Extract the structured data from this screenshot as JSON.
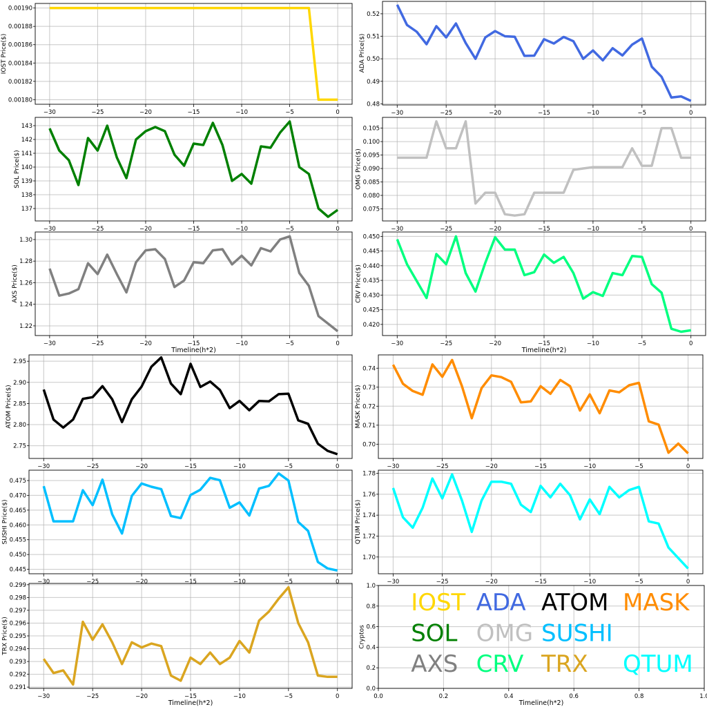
{
  "chart_data": [
    {
      "id": "iost",
      "type": "line",
      "name": "IOST",
      "color": "#FFD700",
      "ylabel": "IOST Price($)",
      "xlabel": "",
      "xlim": [
        -31.5,
        1.5
      ],
      "ylim": [
        0.001795,
        0.001905
      ],
      "xticks": [
        -30,
        -25,
        -20,
        -15,
        -10,
        -5,
        0
      ],
      "xtick_labels": [
        "−30",
        "−25",
        "−20",
        "−15",
        "−10",
        "−5",
        "0"
      ],
      "yticks": [
        0.0018,
        0.00182,
        0.00184,
        0.00186,
        0.00188,
        0.0019
      ],
      "ytick_labels": [
        "0.00180",
        "0.00182",
        "0.00184",
        "0.00186",
        "0.00188",
        "0.00190"
      ],
      "x": [
        -30,
        -29,
        -28,
        -27,
        -26,
        -25,
        -24,
        -23,
        -22,
        -21,
        -20,
        -19,
        -18,
        -17,
        -16,
        -15,
        -14,
        -13,
        -12,
        -11,
        -10,
        -9,
        -8,
        -7,
        -6,
        -5,
        -4,
        -3,
        -2,
        -1,
        0
      ],
      "y": [
        0.0019,
        0.0019,
        0.0019,
        0.0019,
        0.0019,
        0.0019,
        0.0019,
        0.0019,
        0.0019,
        0.0019,
        0.0019,
        0.0019,
        0.0019,
        0.0019,
        0.0019,
        0.0019,
        0.0019,
        0.0019,
        0.0019,
        0.0019,
        0.0019,
        0.0019,
        0.0019,
        0.0019,
        0.0019,
        0.0019,
        0.0019,
        0.0019,
        0.0018,
        0.0018,
        0.0018
      ]
    },
    {
      "id": "ada",
      "type": "line",
      "name": "ADA",
      "color": "#4169E1",
      "ylabel": "ADA  Price($)",
      "xlabel": "",
      "xlim": [
        -31.5,
        1.5
      ],
      "ylim": [
        0.4795,
        0.5255
      ],
      "xticks": [
        -30,
        -25,
        -20,
        -15,
        -10,
        -5,
        0
      ],
      "xtick_labels": [
        "−30",
        "−25",
        "−20",
        "−15",
        "−10",
        "−5",
        "0"
      ],
      "yticks": [
        0.48,
        0.49,
        0.5,
        0.51,
        0.52
      ],
      "ytick_labels": [
        "0.48",
        "0.49",
        "0.50",
        "0.51",
        "0.52"
      ],
      "x": [
        -30,
        -29,
        -28,
        -27,
        -26,
        -25,
        -24,
        -23,
        -22,
        -21,
        -20,
        -19,
        -18,
        -17,
        -16,
        -15,
        -14,
        -13,
        -12,
        -11,
        -10,
        -9,
        -8,
        -7,
        -6,
        -5,
        -4,
        -3,
        -2,
        -1,
        0
      ],
      "y": [
        0.524,
        0.515,
        0.512,
        0.5065,
        0.5145,
        0.5095,
        0.5157,
        0.507,
        0.5,
        0.5095,
        0.5123,
        0.51,
        0.5098,
        0.5013,
        0.5014,
        0.5087,
        0.5068,
        0.5097,
        0.5078,
        0.5,
        0.5037,
        0.4993,
        0.5047,
        0.5015,
        0.5063,
        0.509,
        0.4965,
        0.492,
        0.4828,
        0.4833,
        0.4813
      ]
    },
    {
      "id": "sol",
      "type": "line",
      "name": "SOL",
      "color": "#008000",
      "ylabel": "SOL Price($)",
      "xlabel": "",
      "xlim": [
        -31.5,
        1.5
      ],
      "ylim": [
        136.1,
        143.6
      ],
      "xticks": [
        -30,
        -25,
        -20,
        -15,
        -10,
        -5,
        0
      ],
      "xtick_labels": [
        "−30",
        "−25",
        "−20",
        "−15",
        "−10",
        "−5",
        "0"
      ],
      "yticks": [
        137,
        138,
        139,
        140,
        141,
        142,
        143
      ],
      "ytick_labels": [
        "137",
        "138",
        "139",
        "140",
        "141",
        "142",
        "143"
      ],
      "x": [
        -30,
        -29,
        -28,
        -27,
        -26,
        -25,
        -24,
        -23,
        -22,
        -21,
        -20,
        -19,
        -18,
        -17,
        -16,
        -15,
        -14,
        -13,
        -12,
        -11,
        -10,
        -9,
        -8,
        -7,
        -6,
        -5,
        -4,
        -3,
        -2,
        -1,
        0
      ],
      "y": [
        142.8,
        141.2,
        140.5,
        138.7,
        142.1,
        141.2,
        143.0,
        140.7,
        139.2,
        142.0,
        142.6,
        142.9,
        142.6,
        140.9,
        140.1,
        141.7,
        141.6,
        143.2,
        141.6,
        139.0,
        139.5,
        138.8,
        141.5,
        141.4,
        142.5,
        143.3,
        140.0,
        139.5,
        137.0,
        136.4,
        136.9
      ]
    },
    {
      "id": "omg",
      "type": "line",
      "name": "OMG",
      "color": "#C0C0C0",
      "ylabel": "OMG  Price($)",
      "xlabel": "",
      "xlim": [
        -31.5,
        1.5
      ],
      "ylim": [
        0.0705,
        0.109
      ],
      "xticks": [
        -30,
        -25,
        -20,
        -15,
        -10,
        -5,
        0
      ],
      "xtick_labels": [
        "−30",
        "−25",
        "−20",
        "−15",
        "−10",
        "−5",
        "0"
      ],
      "yticks": [
        0.075,
        0.08,
        0.085,
        0.09,
        0.095,
        0.1,
        0.105
      ],
      "ytick_labels": [
        "0.075",
        "0.080",
        "0.085",
        "0.090",
        "0.095",
        "0.100",
        "0.105"
      ],
      "x": [
        -30,
        -29,
        -28,
        -27,
        -26,
        -25,
        -24,
        -23,
        -22,
        -21,
        -20,
        -19,
        -18,
        -17,
        -16,
        -15,
        -14,
        -13,
        -12,
        -11,
        -10,
        -9,
        -8,
        -7,
        -6,
        -5,
        -4,
        -3,
        -2,
        -1,
        0
      ],
      "y": [
        0.094,
        0.094,
        0.094,
        0.094,
        0.1075,
        0.0975,
        0.0975,
        0.1075,
        0.077,
        0.081,
        0.081,
        0.073,
        0.0725,
        0.073,
        0.081,
        0.081,
        0.081,
        0.081,
        0.0895,
        0.09,
        0.0905,
        0.0905,
        0.0905,
        0.0905,
        0.0975,
        0.091,
        0.091,
        0.105,
        0.105,
        0.094,
        0.094
      ]
    },
    {
      "id": "axs",
      "type": "line",
      "name": "AXS",
      "color": "#808080",
      "ylabel": "AXS Price($)",
      "xlabel": "Timeline(h*2)",
      "xlim": [
        -31.5,
        1.5
      ],
      "ylim": [
        1.211,
        1.307
      ],
      "xticks": [
        -30,
        -25,
        -20,
        -15,
        -10,
        -5,
        0
      ],
      "xtick_labels": [
        "−30",
        "−25",
        "−20",
        "−15",
        "−10",
        "−5",
        "0"
      ],
      "yticks": [
        1.22,
        1.24,
        1.26,
        1.28,
        1.3
      ],
      "ytick_labels": [
        "1.22",
        "1.24",
        "1.26",
        "1.28",
        "1.30"
      ],
      "x": [
        -30,
        -29,
        -28,
        -27,
        -26,
        -25,
        -24,
        -23,
        -22,
        -21,
        -20,
        -19,
        -18,
        -17,
        -16,
        -15,
        -14,
        -13,
        -12,
        -11,
        -10,
        -9,
        -8,
        -7,
        -6,
        -5,
        -4,
        -3,
        -2,
        -1,
        0
      ],
      "y": [
        1.273,
        1.248,
        1.25,
        1.254,
        1.278,
        1.268,
        1.286,
        1.268,
        1.251,
        1.279,
        1.29,
        1.291,
        1.282,
        1.256,
        1.262,
        1.279,
        1.278,
        1.29,
        1.291,
        1.277,
        1.285,
        1.276,
        1.292,
        1.289,
        1.3,
        1.303,
        1.269,
        1.257,
        1.229,
        1.222,
        1.215
      ]
    },
    {
      "id": "crv",
      "type": "line",
      "name": "CRV",
      "color": "#00FF7F",
      "ylabel": "CRV  Price($)",
      "xlabel": "Timeline(h*2)",
      "xlim": [
        -31.5,
        1.5
      ],
      "ylim": [
        0.4162,
        0.4515
      ],
      "xticks": [
        -30,
        -25,
        -20,
        -15,
        -10,
        -5,
        0
      ],
      "xtick_labels": [
        "−30",
        "−25",
        "−20",
        "−15",
        "−10",
        "−5",
        "0"
      ],
      "yticks": [
        0.42,
        0.425,
        0.43,
        0.435,
        0.44,
        0.445,
        0.45
      ],
      "ytick_labels": [
        "0.420",
        "0.425",
        "0.430",
        "0.435",
        "0.440",
        "0.445",
        "0.450"
      ],
      "x": [
        -30,
        -29,
        -28,
        -27,
        -26,
        -25,
        -24,
        -23,
        -22,
        -21,
        -20,
        -19,
        -18,
        -17,
        -16,
        -15,
        -14,
        -13,
        -12,
        -11,
        -10,
        -9,
        -8,
        -7,
        -6,
        -5,
        -4,
        -3,
        -2,
        -1,
        0
      ],
      "y": [
        0.449,
        0.4405,
        0.4348,
        0.429,
        0.444,
        0.4405,
        0.45,
        0.4375,
        0.4312,
        0.441,
        0.4497,
        0.4455,
        0.4455,
        0.4368,
        0.4378,
        0.4438,
        0.441,
        0.443,
        0.4375,
        0.4288,
        0.431,
        0.4297,
        0.4375,
        0.4368,
        0.4433,
        0.443,
        0.4337,
        0.4308,
        0.4185,
        0.4175,
        0.418
      ]
    },
    {
      "id": "atom",
      "type": "line",
      "name": "ATOM",
      "color": "#000000",
      "ylabel": "ATOM  Price($)",
      "xlabel": "",
      "xlim": [
        -31.5,
        1.5
      ],
      "ylim": [
        2.72,
        2.965
      ],
      "xticks": [
        -30,
        -25,
        -20,
        -15,
        -10,
        -5,
        0
      ],
      "xtick_labels": [
        "−30",
        "−25",
        "−20",
        "−15",
        "−10",
        "−5",
        "0"
      ],
      "yticks": [
        2.75,
        2.8,
        2.85,
        2.9,
        2.95
      ],
      "ytick_labels": [
        "2.75",
        "2.80",
        "2.85",
        "2.90",
        "2.95"
      ],
      "x": [
        -30,
        -29,
        -28,
        -27,
        -26,
        -25,
        -24,
        -23,
        -22,
        -21,
        -20,
        -19,
        -18,
        -17,
        -16,
        -15,
        -14,
        -13,
        -12,
        -11,
        -10,
        -9,
        -8,
        -7,
        -6,
        -5,
        -4,
        -3,
        -2,
        -1,
        0
      ],
      "y": [
        2.883,
        2.812,
        2.793,
        2.812,
        2.861,
        2.865,
        2.891,
        2.86,
        2.806,
        2.86,
        2.89,
        2.937,
        2.959,
        2.897,
        2.872,
        2.944,
        2.889,
        2.902,
        2.882,
        2.839,
        2.856,
        2.834,
        2.856,
        2.855,
        2.872,
        2.873,
        2.81,
        2.802,
        2.755,
        2.738,
        2.73
      ]
    },
    {
      "id": "mask",
      "type": "line",
      "name": "MASK",
      "color": "#FF8C00",
      "ylabel": "MASK  Price($)",
      "xlabel": "",
      "xlim": [
        -31.5,
        1.5
      ],
      "ylim": [
        0.6925,
        0.747
      ],
      "xticks": [
        -30,
        -25,
        -20,
        -15,
        -10,
        -5,
        0
      ],
      "xtick_labels": [
        "−30",
        "−25",
        "−20",
        "−15",
        "−10",
        "−5",
        "0"
      ],
      "yticks": [
        0.7,
        0.71,
        0.72,
        0.73,
        0.74
      ],
      "ytick_labels": [
        "0.70",
        "0.71",
        "0.72",
        "0.73",
        "0.74"
      ],
      "x": [
        -30,
        -29,
        -28,
        -27,
        -26,
        -25,
        -24,
        -23,
        -22,
        -21,
        -20,
        -19,
        -18,
        -17,
        -16,
        -15,
        -14,
        -13,
        -12,
        -11,
        -10,
        -9,
        -8,
        -7,
        -6,
        -5,
        -4,
        -3,
        -2,
        -1,
        0
      ],
      "y": [
        0.7418,
        0.7318,
        0.728,
        0.726,
        0.742,
        0.7355,
        0.7443,
        0.7305,
        0.7137,
        0.7295,
        0.7362,
        0.7353,
        0.7328,
        0.722,
        0.7225,
        0.7305,
        0.7265,
        0.7338,
        0.7305,
        0.7177,
        0.7262,
        0.7163,
        0.7283,
        0.7273,
        0.731,
        0.7323,
        0.712,
        0.7103,
        0.6955,
        0.7003,
        0.6952
      ]
    },
    {
      "id": "sushi",
      "type": "line",
      "name": "SUSHI",
      "color": "#00BFFF",
      "ylabel": "SUSHI  Price($)",
      "xlabel": "",
      "xlim": [
        -31.5,
        1.5
      ],
      "ylim": [
        0.4435,
        0.4785
      ],
      "xticks": [
        -30,
        -25,
        -20,
        -15,
        -10,
        -5,
        0
      ],
      "xtick_labels": [
        "−30",
        "−25",
        "−20",
        "−15",
        "−10",
        "−5",
        "0"
      ],
      "yticks": [
        0.445,
        0.45,
        0.455,
        0.46,
        0.465,
        0.47,
        0.475
      ],
      "ytick_labels": [
        "0.445",
        "0.450",
        "0.455",
        "0.460",
        "0.465",
        "0.470",
        "0.475"
      ],
      "x": [
        -30,
        -29,
        -28,
        -27,
        -26,
        -25,
        -24,
        -23,
        -22,
        -21,
        -20,
        -19,
        -18,
        -17,
        -16,
        -15,
        -14,
        -13,
        -12,
        -11,
        -10,
        -9,
        -8,
        -7,
        -6,
        -5,
        -4,
        -3,
        -2,
        -1,
        0
      ],
      "y": [
        0.4731,
        0.4612,
        0.4612,
        0.4612,
        0.4717,
        0.4667,
        0.4753,
        0.4636,
        0.4571,
        0.4698,
        0.474,
        0.4729,
        0.4721,
        0.463,
        0.4623,
        0.4701,
        0.4719,
        0.4759,
        0.4751,
        0.4658,
        0.4676,
        0.4632,
        0.4723,
        0.4732,
        0.4774,
        0.475,
        0.461,
        0.458,
        0.4475,
        0.4453,
        0.4446
      ]
    },
    {
      "id": "qtum",
      "type": "line",
      "name": "QTUM",
      "color": "#00FFFF",
      "ylabel": "QTUM Price($)",
      "xlabel": "",
      "xlim": [
        -31.5,
        1.5
      ],
      "ylim": [
        1.684,
        1.783
      ],
      "xticks": [
        -30,
        -25,
        -20,
        -15,
        -10,
        -5,
        0
      ],
      "xtick_labels": [
        "−30",
        "−25",
        "−20",
        "−15",
        "−10",
        "−5",
        "0"
      ],
      "yticks": [
        1.7,
        1.72,
        1.74,
        1.76,
        1.78
      ],
      "ytick_labels": [
        "1.70",
        "1.72",
        "1.74",
        "1.76",
        "1.78"
      ],
      "x": [
        -30,
        -29,
        -28,
        -27,
        -26,
        -25,
        -24,
        -23,
        -22,
        -21,
        -20,
        -19,
        -18,
        -17,
        -16,
        -15,
        -14,
        -13,
        -12,
        -11,
        -10,
        -9,
        -8,
        -7,
        -6,
        -5,
        -4,
        -3,
        -2,
        -1,
        0
      ],
      "y": [
        1.766,
        1.738,
        1.728,
        1.747,
        1.775,
        1.756,
        1.779,
        1.754,
        1.724,
        1.754,
        1.772,
        1.772,
        1.77,
        1.75,
        1.743,
        1.768,
        1.757,
        1.77,
        1.759,
        1.736,
        1.755,
        1.741,
        1.767,
        1.757,
        1.764,
        1.767,
        1.734,
        1.732,
        1.709,
        1.699,
        1.689
      ]
    },
    {
      "id": "trx",
      "type": "line",
      "name": "TRX",
      "color": "#DAA520",
      "ylabel": "TRX Price($)",
      "xlabel": "Timeline(h*2)",
      "xlim": [
        -31.5,
        1.5
      ],
      "ylim": [
        0.2909,
        0.2991
      ],
      "xticks": [
        -30,
        -25,
        -20,
        -15,
        -10,
        -5,
        0
      ],
      "xtick_labels": [
        "−30",
        "−25",
        "−20",
        "−15",
        "−10",
        "−5",
        "0"
      ],
      "yticks": [
        0.291,
        0.292,
        0.293,
        0.294,
        0.295,
        0.296,
        0.297,
        0.298,
        0.299
      ],
      "ytick_labels": [
        "0.291",
        "0.292",
        "0.293",
        "0.294",
        "0.295",
        "0.296",
        "0.297",
        "0.298",
        "0.299"
      ],
      "x": [
        -30,
        -29,
        -28,
        -27,
        -26,
        -25,
        -24,
        -23,
        -22,
        -21,
        -20,
        -19,
        -18,
        -17,
        -16,
        -15,
        -14,
        -13,
        -12,
        -11,
        -10,
        -9,
        -8,
        -7,
        -6,
        -5,
        -4,
        -3,
        -2,
        -1,
        0
      ],
      "y": [
        0.2932,
        0.2921,
        0.2923,
        0.2912,
        0.2961,
        0.2947,
        0.2959,
        0.2945,
        0.2928,
        0.2945,
        0.2941,
        0.2944,
        0.2942,
        0.2919,
        0.2915,
        0.2933,
        0.2928,
        0.2937,
        0.2928,
        0.2933,
        0.2946,
        0.2937,
        0.2962,
        0.2969,
        0.2979,
        0.2988,
        0.296,
        0.2945,
        0.2919,
        0.2918,
        0.2918
      ]
    },
    {
      "id": "legend",
      "type": "text-legend",
      "ylabel": "Cryptos",
      "xlabel": "Timeline(h*2)",
      "xlim": [
        0,
        1
      ],
      "ylim": [
        0,
        1
      ],
      "xticks": [
        0,
        0.2,
        0.4,
        0.6,
        0.8,
        1.0
      ],
      "xtick_labels": [
        "0.0",
        "0.2",
        "0.4",
        "0.6",
        "0.8",
        "1.0"
      ],
      "yticks": [
        0,
        0.2,
        0.4,
        0.6,
        0.8,
        1.0
      ],
      "ytick_labels": [
        "0.0",
        "0.2",
        "0.4",
        "0.6",
        "0.8",
        "1.0"
      ],
      "entries": [
        {
          "label": "IOST",
          "color": "#FFD700"
        },
        {
          "label": "ADA",
          "color": "#4169E1"
        },
        {
          "label": "ATOM",
          "color": "#000000"
        },
        {
          "label": "MASK",
          "color": "#FF8C00"
        },
        {
          "label": "SOL",
          "color": "#008000"
        },
        {
          "label": "OMG",
          "color": "#C0C0C0"
        },
        {
          "label": "SUSHI",
          "color": "#00BFFF"
        },
        {
          "label": "AXS",
          "color": "#808080"
        },
        {
          "label": "CRV",
          "color": "#00FF7F"
        },
        {
          "label": "TRX",
          "color": "#DAA520"
        },
        {
          "label": "QTUM",
          "color": "#00FFFF"
        }
      ]
    }
  ]
}
